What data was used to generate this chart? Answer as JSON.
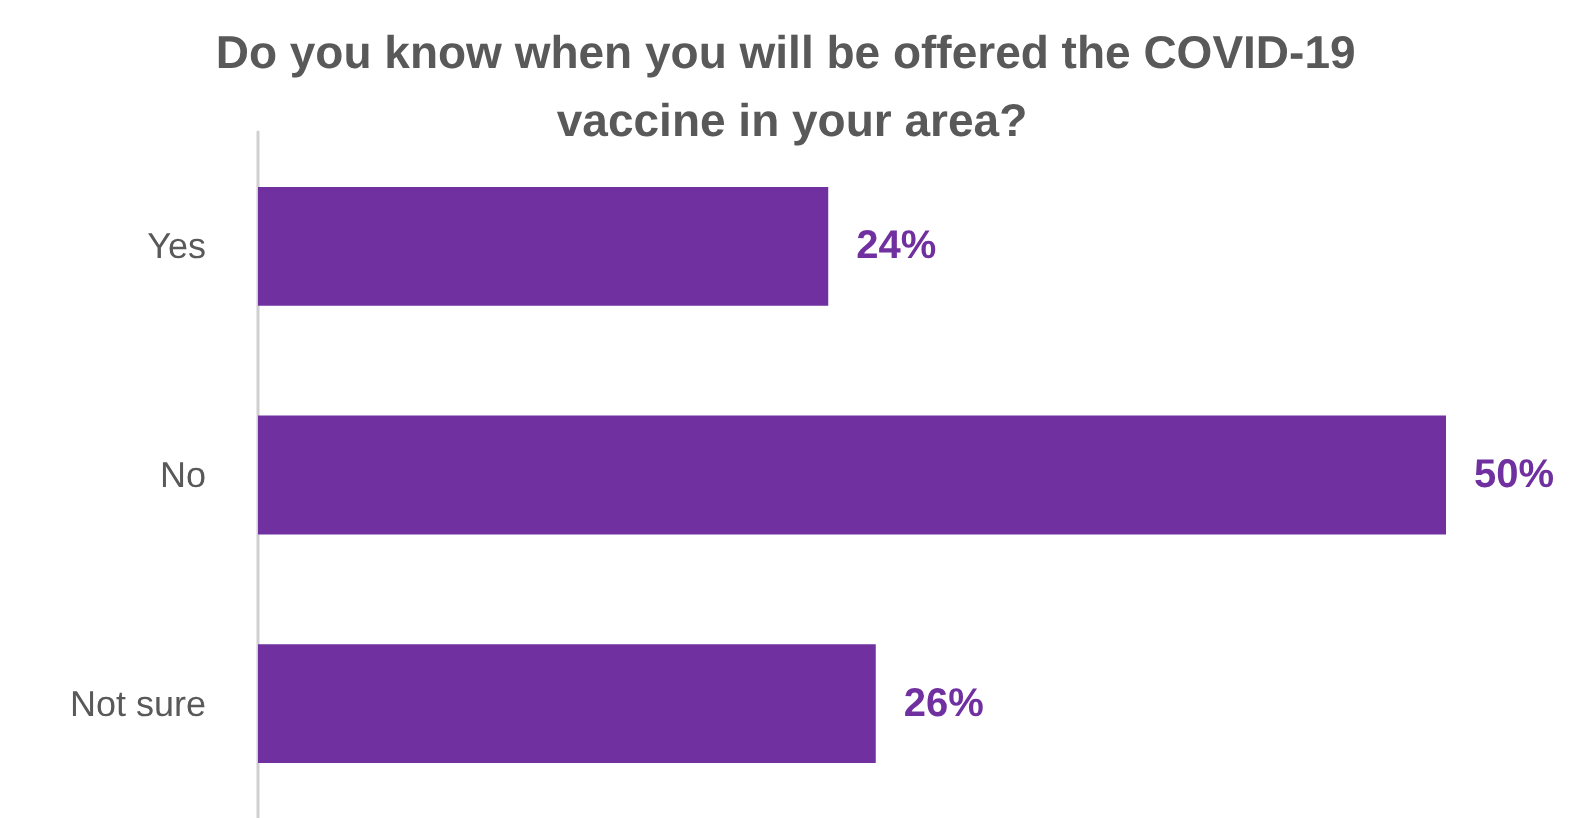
{
  "chart_data": {
    "type": "bar",
    "orientation": "horizontal",
    "title": "Do you know when you will be offered the COVID-19 vaccine in your area?",
    "categories": [
      "Yes",
      "No",
      "Not sure"
    ],
    "values": [
      24,
      50,
      26
    ],
    "value_labels": [
      "24%",
      "50%",
      "26%"
    ],
    "color": "#7030a0",
    "tick_labels": "y"
  }
}
